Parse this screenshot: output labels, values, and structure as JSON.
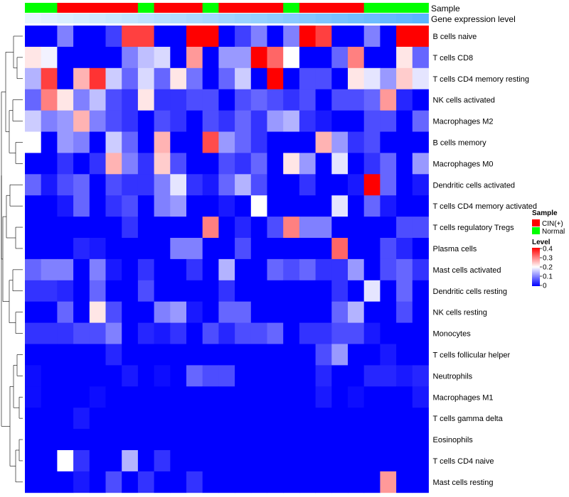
{
  "chart_data": {
    "type": "heatmap",
    "title": "",
    "annotations": {
      "sample_label": "Sample",
      "expression_label": "Gene expression level"
    },
    "columns": {
      "count": 25,
      "sample_groups": [
        "Normal",
        "Normal",
        "CIN(+)",
        "CIN(+)",
        "CIN(+)",
        "CIN(+)",
        "CIN(+)",
        "Normal",
        "CIN(+)",
        "CIN(+)",
        "CIN(+)",
        "Normal",
        "CIN(+)",
        "CIN(+)",
        "CIN(+)",
        "CIN(+)",
        "Normal",
        "CIN(+)",
        "CIN(+)",
        "CIN(+)",
        "CIN(+)",
        "Normal",
        "Normal",
        "Normal",
        "Normal"
      ],
      "expression_level": [
        0.02,
        0.04,
        0.06,
        0.08,
        0.1,
        0.12,
        0.14,
        0.16,
        0.18,
        0.2,
        0.22,
        0.24,
        0.26,
        0.28,
        0.3,
        0.32,
        0.34,
        0.36,
        0.38,
        0.4,
        0.42,
        0.44,
        0.46,
        0.48,
        0.5
      ]
    },
    "rows": [
      "B cells naive",
      "T cells CD8",
      "T cells CD4 memory resting",
      "NK cells activated",
      "Macrophages M2",
      "B cells memory",
      "Macrophages M0",
      "Dendritic cells activated",
      "T cells CD4 memory activated",
      "T cells regulatory  Tregs",
      "Plasma cells",
      "Mast cells activated",
      "Dendritic cells resting",
      "NK cells resting",
      "Monocytes",
      "T cells follicular helper",
      "Neutrophils",
      "Macrophages M1",
      "T cells gamma delta",
      "Eosinophils",
      "T cells CD4 naive",
      "Mast cells resting"
    ],
    "values": [
      [
        0.0,
        0.0,
        0.1,
        0.0,
        0.0,
        0.05,
        0.35,
        0.35,
        0.0,
        0.0,
        0.4,
        0.4,
        0.0,
        0.05,
        0.1,
        0.0,
        0.1,
        0.4,
        0.35,
        0.0,
        0.0,
        0.1,
        0.0,
        0.4,
        0.4
      ],
      [
        0.22,
        0.19,
        0.0,
        0.0,
        0.0,
        0.0,
        0.1,
        0.15,
        0.17,
        0.0,
        0.28,
        0.0,
        0.12,
        0.12,
        0.4,
        0.32,
        0.2,
        0.0,
        0.0,
        0.08,
        0.3,
        0.0,
        0.0,
        0.22,
        0.08
      ],
      [
        0.14,
        0.35,
        0.0,
        0.26,
        0.36,
        0.16,
        0.08,
        0.17,
        0.08,
        0.22,
        0.09,
        0.0,
        0.08,
        0.16,
        0.0,
        0.4,
        0.0,
        0.06,
        0.06,
        0.0,
        0.22,
        0.18,
        0.12,
        0.24,
        0.18
      ],
      [
        0.08,
        0.3,
        0.22,
        0.1,
        0.15,
        0.06,
        0.04,
        0.22,
        0.04,
        0.04,
        0.06,
        0.06,
        0.0,
        0.06,
        0.08,
        0.06,
        0.04,
        0.06,
        0.0,
        0.06,
        0.06,
        0.08,
        0.28,
        0.03,
        0.0
      ],
      [
        0.16,
        0.1,
        0.12,
        0.26,
        0.1,
        0.06,
        0.04,
        0.0,
        0.06,
        0.04,
        0.0,
        0.06,
        0.04,
        0.08,
        0.04,
        0.12,
        0.14,
        0.04,
        0.02,
        0.0,
        0.0,
        0.06,
        0.06,
        0.0,
        0.08
      ],
      [
        0.2,
        0.0,
        0.12,
        0.1,
        0.0,
        0.16,
        0.08,
        0.0,
        0.26,
        0.0,
        0.0,
        0.34,
        0.12,
        0.08,
        0.04,
        0.0,
        0.0,
        0.0,
        0.26,
        0.12,
        0.04,
        0.06,
        0.0,
        0.0,
        0.0
      ],
      [
        0.0,
        0.0,
        0.04,
        0.0,
        0.04,
        0.26,
        0.1,
        0.04,
        0.24,
        0.06,
        0.0,
        0.0,
        0.06,
        0.04,
        0.08,
        0.0,
        0.22,
        0.12,
        0.0,
        0.18,
        0.0,
        0.04,
        0.08,
        0.0,
        0.12
      ],
      [
        0.08,
        0.02,
        0.06,
        0.08,
        0.0,
        0.06,
        0.04,
        0.04,
        0.1,
        0.18,
        0.04,
        0.02,
        0.08,
        0.14,
        0.06,
        0.0,
        0.0,
        0.04,
        0.0,
        0.0,
        0.02,
        0.4,
        0.08,
        0.0,
        0.02
      ],
      [
        0.0,
        0.0,
        0.02,
        0.08,
        0.0,
        0.04,
        0.06,
        0.0,
        0.1,
        0.12,
        0.0,
        0.0,
        0.02,
        0.0,
        0.2,
        0.0,
        0.0,
        0.0,
        0.0,
        0.18,
        0.0,
        0.08,
        0.02,
        0.0,
        0.0
      ],
      [
        0.0,
        0.0,
        0.0,
        0.0,
        0.0,
        0.0,
        0.04,
        0.0,
        0.0,
        0.0,
        0.0,
        0.3,
        0.0,
        0.03,
        0.0,
        0.06,
        0.3,
        0.1,
        0.1,
        0.0,
        0.0,
        0.0,
        0.0,
        0.06,
        0.06
      ],
      [
        0.0,
        0.0,
        0.0,
        0.03,
        0.02,
        0.0,
        0.0,
        0.0,
        0.0,
        0.1,
        0.1,
        0.0,
        0.0,
        0.06,
        0.0,
        0.0,
        0.0,
        0.0,
        0.0,
        0.32,
        0.0,
        0.0,
        0.06,
        0.03,
        0.0
      ],
      [
        0.08,
        0.1,
        0.1,
        0.0,
        0.1,
        0.02,
        0.0,
        0.04,
        0.0,
        0.0,
        0.04,
        0.0,
        0.14,
        0.0,
        0.0,
        0.08,
        0.06,
        0.08,
        0.04,
        0.04,
        0.12,
        0.0,
        0.06,
        0.08,
        0.04
      ],
      [
        0.04,
        0.04,
        0.03,
        0.0,
        0.08,
        0.0,
        0.0,
        0.06,
        0.0,
        0.0,
        0.0,
        0.0,
        0.04,
        0.0,
        0.0,
        0.0,
        0.0,
        0.0,
        0.0,
        0.04,
        0.0,
        0.18,
        0.0,
        0.08,
        0.0
      ],
      [
        0.0,
        0.0,
        0.08,
        0.0,
        0.22,
        0.06,
        0.0,
        0.0,
        0.1,
        0.12,
        0.02,
        0.0,
        0.08,
        0.08,
        0.0,
        0.0,
        0.0,
        0.0,
        0.0,
        0.08,
        0.14,
        0.0,
        0.0,
        0.06,
        0.0
      ],
      [
        0.04,
        0.04,
        0.04,
        0.06,
        0.06,
        0.1,
        0.0,
        0.03,
        0.02,
        0.04,
        0.0,
        0.06,
        0.03,
        0.06,
        0.06,
        0.08,
        0.0,
        0.04,
        0.04,
        0.06,
        0.06,
        0.02,
        0.0,
        0.0,
        0.0
      ],
      [
        0.0,
        0.0,
        0.0,
        0.0,
        0.0,
        0.03,
        0.0,
        0.0,
        0.0,
        0.0,
        0.0,
        0.0,
        0.0,
        0.0,
        0.0,
        0.0,
        0.0,
        0.0,
        0.06,
        0.12,
        0.0,
        0.0,
        0.02,
        0.0,
        0.0
      ],
      [
        0.01,
        0.0,
        0.0,
        0.0,
        0.0,
        0.0,
        0.02,
        0.0,
        0.01,
        0.0,
        0.08,
        0.06,
        0.06,
        0.0,
        0.0,
        0.0,
        0.0,
        0.0,
        0.03,
        0.0,
        0.0,
        0.03,
        0.03,
        0.02,
        0.03
      ],
      [
        0.01,
        0.0,
        0.0,
        0.0,
        0.01,
        0.0,
        0.0,
        0.0,
        0.0,
        0.0,
        0.0,
        0.0,
        0.0,
        0.0,
        0.0,
        0.0,
        0.0,
        0.0,
        0.02,
        0.0,
        0.01,
        0.0,
        0.0,
        0.0,
        0.02
      ],
      [
        0.0,
        0.0,
        0.0,
        0.02,
        0.0,
        0.0,
        0.0,
        0.0,
        0.0,
        0.0,
        0.0,
        0.0,
        0.0,
        0.0,
        0.0,
        0.0,
        0.0,
        0.0,
        0.0,
        0.0,
        0.0,
        0.0,
        0.0,
        0.0,
        0.0
      ],
      [
        0.0,
        0.0,
        0.0,
        0.0,
        0.0,
        0.0,
        0.0,
        0.0,
        0.0,
        0.0,
        0.0,
        0.0,
        0.0,
        0.0,
        0.0,
        0.0,
        0.0,
        0.0,
        0.0,
        0.0,
        0.0,
        0.0,
        0.0,
        0.0,
        0.0
      ],
      [
        0.0,
        0.0,
        0.2,
        0.04,
        0.0,
        0.0,
        0.14,
        0.0,
        0.04,
        0.0,
        0.0,
        0.0,
        0.0,
        0.0,
        0.0,
        0.0,
        0.0,
        0.0,
        0.0,
        0.0,
        0.0,
        0.0,
        0.0,
        0.0,
        0.0
      ],
      [
        0.0,
        0.0,
        0.0,
        0.02,
        0.0,
        0.06,
        0.0,
        0.04,
        0.0,
        0.0,
        0.04,
        0.0,
        0.0,
        0.0,
        0.0,
        0.0,
        0.0,
        0.0,
        0.0,
        0.0,
        0.0,
        0.0,
        0.28,
        0.0,
        0.0
      ]
    ],
    "color_scale": {
      "min": 0,
      "mid": 0.2,
      "max": 0.4,
      "low": "#0000ff",
      "midColor": "#ffffff",
      "high": "#ff0000"
    },
    "legend": {
      "sample_title": "Sample",
      "sample_entries": [
        {
          "label": "CIN(+)",
          "color": "#ff0000"
        },
        {
          "label": "Normal",
          "color": "#00ff00"
        }
      ],
      "level_title": "Level",
      "level_ticks": [
        "0.4",
        "0.3",
        "0.2",
        "0.1",
        "0"
      ]
    },
    "expression_bar_colors": {
      "start": "#e6f4ff",
      "end": "#5ab4ff"
    }
  }
}
